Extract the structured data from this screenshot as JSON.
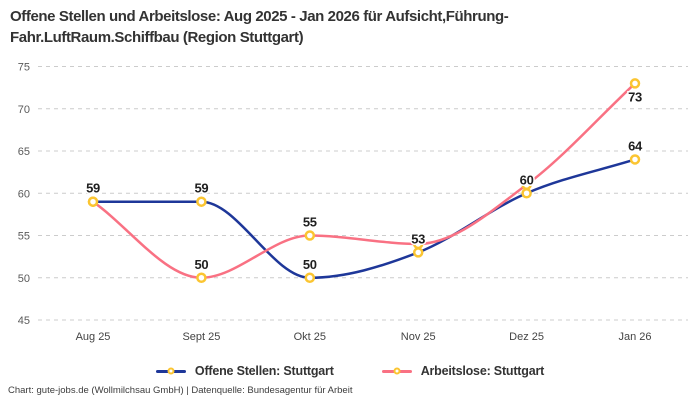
{
  "title": {
    "lines": [
      "Offene Stellen und Arbeitslose: Aug 2025 - Jan 2026 für Aufsicht,Führung-",
      "Fahr.LuftRaum.Schiffbau (Region Stuttgart)"
    ]
  },
  "legend": {
    "items": [
      {
        "label": "Offene Stellen: Stuttgart",
        "color": "#1e3799"
      },
      {
        "label": "Arbeitslose: Stuttgart",
        "color": "#f97183"
      }
    ]
  },
  "footer": {
    "text": "Chart: gute-jobs.de (Wollmilchsau GmbH) | Datenquelle: Bundesagentur für Arbeit"
  },
  "chart_data": {
    "type": "line",
    "curve": "monotone-spline",
    "categories": [
      "Aug 25",
      "Sept 25",
      "Okt 25",
      "Nov 25",
      "Dez 25",
      "Jan 26"
    ],
    "series": [
      {
        "name": "Offene Stellen: Stuttgart",
        "color": "#1e3799",
        "values": [
          59,
          59,
          50,
          53,
          60,
          64
        ]
      },
      {
        "name": "Arbeitslose: Stuttgart",
        "color": "#f97183",
        "values": [
          59,
          50,
          55,
          54,
          61,
          73
        ]
      }
    ],
    "y_ticks": [
      45,
      50,
      55,
      60,
      65,
      70,
      75
    ],
    "ylim": [
      45,
      77.5
    ],
    "grid": "horizontal-dashed",
    "legend_position": "bottom",
    "marker": {
      "shape": "circle",
      "fill": "#ffffff",
      "stroke": "#fbc531",
      "radius": 4,
      "stroke_width": 2.5
    },
    "visible_point_labels": [
      {
        "series": 0,
        "index": 0,
        "text": "59",
        "placement": "above"
      },
      {
        "series": 0,
        "index": 1,
        "text": "59",
        "placement": "above"
      },
      {
        "series": 1,
        "index": 1,
        "text": "50",
        "placement": "above"
      },
      {
        "series": 1,
        "index": 2,
        "text": "55",
        "placement": "above"
      },
      {
        "series": 0,
        "index": 2,
        "text": "50",
        "placement": "above"
      },
      {
        "series": 0,
        "index": 3,
        "text": "53",
        "placement": "above"
      },
      {
        "series": 0,
        "index": 4,
        "text": "60",
        "placement": "above"
      },
      {
        "series": 0,
        "index": 5,
        "text": "64",
        "placement": "above"
      },
      {
        "series": 1,
        "index": 5,
        "text": "73",
        "placement": "below"
      }
    ],
    "colors": {
      "grid": "#cccccc",
      "y_tick_label": "#5a5a5a",
      "x_tick_label": "#444444",
      "data_label": "#1f1f1f"
    }
  }
}
